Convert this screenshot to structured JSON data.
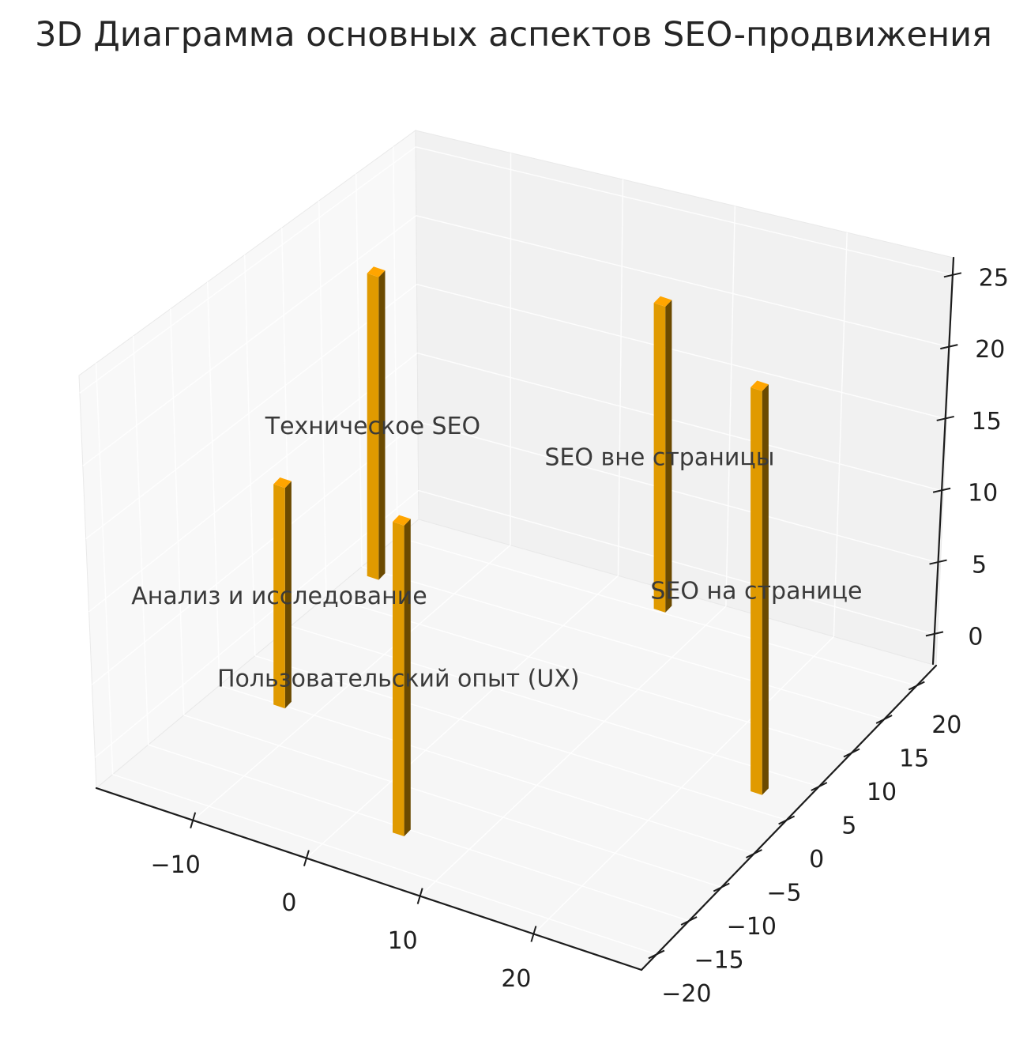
{
  "figure": {
    "title": "3D Диаграмма основных аспектов SEO-продвижения"
  },
  "chart_data": {
    "type": "bar",
    "subtype": "bar3d-columns",
    "title": "3D Диаграмма основных аспектов SEO-продвижения",
    "bars": [
      {
        "name": "Техническое SEO",
        "x": -14,
        "y": 12,
        "z": 0,
        "dx": 1,
        "dy": 1,
        "value": 20
      },
      {
        "name": "SEO вне страницы",
        "x": 7,
        "y": 19,
        "z": 0,
        "dx": 1,
        "dy": 1,
        "value": 20
      },
      {
        "name": "Анализ и исследование",
        "x": -12,
        "y": -6,
        "z": 0,
        "dx": 1,
        "dy": 1,
        "value": 14
      },
      {
        "name": "SEO на странице",
        "x": 25,
        "y": 2,
        "z": 0,
        "dx": 1,
        "dy": 1,
        "value": 25
      },
      {
        "name": "Пользовательский опыт (UX)",
        "x": 4,
        "y": -16,
        "z": 0,
        "dx": 1,
        "dy": 1,
        "value": 19
      }
    ],
    "x_axis": {
      "tick_values": [
        -10,
        0,
        10,
        20
      ],
      "tick_labels": [
        "−10",
        "0",
        "10",
        "20"
      ],
      "range": [
        -18.5,
        29.5
      ]
    },
    "y_axis": {
      "tick_values": [
        20,
        15,
        10,
        5,
        0,
        -5,
        -10,
        -15,
        -20
      ],
      "tick_labels": [
        "20",
        "15",
        "10",
        "5",
        "0",
        "−5",
        "−10",
        "−15",
        "−20"
      ],
      "range": [
        -22.3,
        23
      ]
    },
    "z_axis": {
      "tick_values": [
        0,
        5,
        10,
        15,
        20,
        25
      ],
      "tick_labels": [
        "0",
        "5",
        "10",
        "15",
        "20",
        "25"
      ],
      "range": [
        -2.1,
        26.2
      ]
    },
    "legend": null,
    "grid": true,
    "colors": {
      "bar_top": "#ffa500",
      "bar_front": "#e09a00",
      "bar_side": "#6b4a00",
      "axis_line": "#1c1c1c",
      "tick_label": "#1f1f1f",
      "bar_label": "#3a3a3a",
      "title": "#262626",
      "pane_left_wall": "#f8f8f8",
      "pane_right_wall": "#f1f1f1",
      "pane_floor": "#f6f6f6",
      "pane_edge": "#e9e9e9",
      "grid_line": "#ffffff"
    }
  }
}
